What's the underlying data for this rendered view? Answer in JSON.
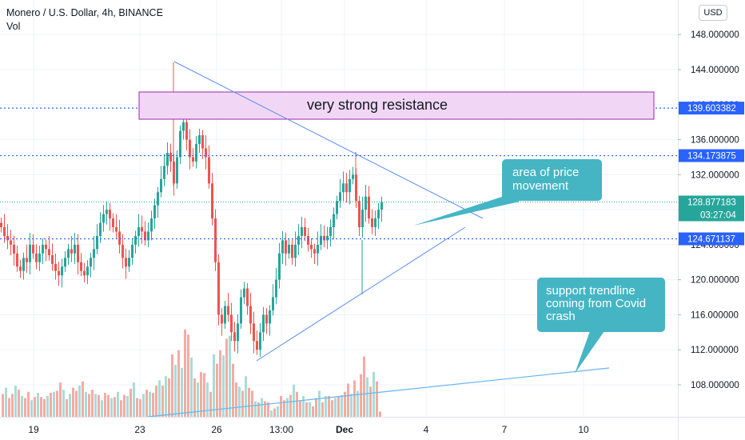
{
  "header": {
    "title": "Monero / U.S. Dollar, 4h, BINANCE",
    "volume_label": "Vol",
    "currency_button": "USD"
  },
  "colors": {
    "up": "#26a69a",
    "down": "#ef5350",
    "vol_up": "#a9dcd6",
    "vol_down": "#f7a9a7",
    "level_line": "#2962ff",
    "annotation_line": "#5b8def",
    "callout_fill": "#45b5c4",
    "resistance_fill": "#f1d7f5",
    "resistance_border": "#9c27b0",
    "price_tag_blue": "#2962ff",
    "price_tag_green": "#26a69a"
  },
  "chart_data": {
    "type": "candlestick",
    "title": "Monero / U.S. Dollar, 4h, BINANCE",
    "y_axis": {
      "ticks": [
        "148.000000",
        "144.000000",
        "140.000000",
        "136.000000",
        "132.000000",
        "128.000000",
        "124.000000",
        "120.000000",
        "116.000000",
        "112.000000",
        "108.000000"
      ],
      "tick_values": [
        148,
        144,
        140,
        136,
        132,
        128,
        124,
        120,
        116,
        112,
        108
      ],
      "ylim": [
        104.7,
        150.6
      ]
    },
    "x_axis": {
      "ticks": [
        "19",
        "23",
        "26",
        "13:00",
        "Dec",
        "4",
        "7",
        "10"
      ]
    },
    "price_tags": {
      "resistance": "139.603382",
      "upper": "134.173875",
      "current": "128.877183",
      "countdown": "03:27:04",
      "support": "124.671137"
    },
    "horizontal_levels": [
      139.603382,
      134.173875,
      128.877183,
      124.671137
    ],
    "annotations": {
      "resistance_box_label": "very strong resistance",
      "callout_price_area": "area of price movement",
      "callout_support": "support trendline coming from Covid crash"
    },
    "volume": {
      "label": "Vol",
      "values": [
        22,
        28,
        18,
        22,
        30,
        26,
        20,
        18,
        24,
        16,
        19,
        23,
        19,
        17,
        20,
        23,
        24,
        25,
        33,
        26,
        17,
        22,
        28,
        25,
        30,
        34,
        24,
        22,
        26,
        22,
        21,
        16,
        23,
        21,
        18,
        19,
        24,
        16,
        21,
        20,
        27,
        33,
        18,
        17,
        22,
        26,
        24,
        23,
        30,
        35,
        30,
        39,
        37,
        60,
        50,
        64,
        47,
        84,
        79,
        57,
        37,
        33,
        43,
        42,
        33,
        24,
        60,
        51,
        64,
        59,
        75,
        78,
        51,
        33,
        29,
        25,
        39,
        28,
        25,
        15,
        14,
        18,
        15,
        14,
        6,
        8,
        10,
        20,
        16,
        18,
        21,
        31,
        24,
        16,
        20,
        14,
        14,
        10,
        18,
        25,
        14,
        20,
        20,
        16,
        18,
        20,
        21,
        24,
        32,
        22,
        35,
        25,
        41,
        58,
        38,
        29,
        43,
        34,
        5
      ]
    }
  }
}
